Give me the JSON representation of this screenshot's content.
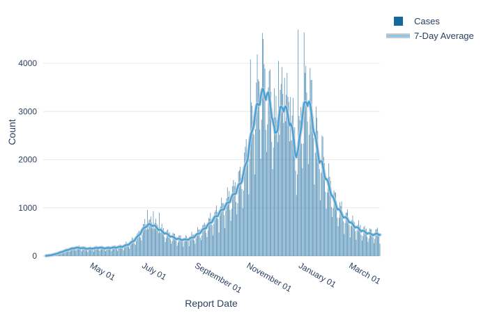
{
  "legend": {
    "items": [
      {
        "label": "Cases",
        "glyph": "square-swatch",
        "color": "#15689e"
      },
      {
        "label": "7-Day Average",
        "glyph": "line-swatch",
        "color": "#8cc6ec",
        "halo": "#c9c9c9"
      }
    ]
  },
  "axes": {
    "y": {
      "title": "Count",
      "ticks": [
        0,
        1000,
        2000,
        3000,
        4000
      ],
      "range": [
        0,
        4910
      ],
      "grid": true
    },
    "x": {
      "title": "Report Date",
      "tick_angle": 30,
      "ticks": [
        {
          "day": 55,
          "label": "May 01"
        },
        {
          "day": 116,
          "label": "July 01"
        },
        {
          "day": 178,
          "label": "September 01"
        },
        {
          "day": 239,
          "label": "November 01"
        },
        {
          "day": 300,
          "label": "January 01"
        },
        {
          "day": 359,
          "label": "March 01"
        }
      ]
    }
  },
  "chart_data": {
    "type": "bar",
    "series": [
      {
        "name": "Cases",
        "type": "bar",
        "color": "#15689e"
      },
      {
        "name": "7-Day Average",
        "type": "line",
        "color": "#45a2d9",
        "halo_color": "#c7ced3"
      }
    ],
    "n_days": 393,
    "grid_color": "#e9e9ec",
    "zeroline_color": "#d7dbde",
    "plot_bg": "#ffffff",
    "avg_anchors": [
      [
        0,
        3
      ],
      [
        7,
        20
      ],
      [
        14,
        55
      ],
      [
        21,
        100
      ],
      [
        28,
        140
      ],
      [
        35,
        170
      ],
      [
        42,
        165
      ],
      [
        49,
        150
      ],
      [
        56,
        158
      ],
      [
        63,
        172
      ],
      [
        70,
        160
      ],
      [
        77,
        170
      ],
      [
        84,
        180
      ],
      [
        91,
        200
      ],
      [
        98,
        250
      ],
      [
        104,
        330
      ],
      [
        109,
        430
      ],
      [
        113,
        530
      ],
      [
        117,
        615
      ],
      [
        121,
        650
      ],
      [
        125,
        640
      ],
      [
        129,
        600
      ],
      [
        133,
        545
      ],
      [
        138,
        490
      ],
      [
        143,
        440
      ],
      [
        148,
        395
      ],
      [
        153,
        360
      ],
      [
        158,
        340
      ],
      [
        163,
        335
      ],
      [
        168,
        350
      ],
      [
        173,
        390
      ],
      [
        178,
        450
      ],
      [
        183,
        520
      ],
      [
        188,
        600
      ],
      [
        193,
        690
      ],
      [
        198,
        790
      ],
      [
        203,
        880
      ],
      [
        208,
        980
      ],
      [
        212,
        1060
      ],
      [
        216,
        1160
      ],
      [
        220,
        1260
      ],
      [
        224,
        1370
      ],
      [
        228,
        1500
      ],
      [
        232,
        1700
      ],
      [
        236,
        2000
      ],
      [
        240,
        2400
      ],
      [
        244,
        2800
      ],
      [
        248,
        3100
      ],
      [
        252,
        3300
      ],
      [
        255,
        3400
      ],
      [
        258,
        3350
      ],
      [
        261,
        3300
      ],
      [
        264,
        3100
      ],
      [
        267,
        2700
      ],
      [
        269,
        2500
      ],
      [
        272,
        2700
      ],
      [
        275,
        3000
      ],
      [
        278,
        3120
      ],
      [
        281,
        3050
      ],
      [
        284,
        2900
      ],
      [
        287,
        2750
      ],
      [
        290,
        2500
      ],
      [
        292,
        2250
      ],
      [
        294,
        2050
      ],
      [
        296,
        2150
      ],
      [
        298,
        2500
      ],
      [
        300,
        2800
      ],
      [
        303,
        3080
      ],
      [
        306,
        3250
      ],
      [
        309,
        3150
      ],
      [
        312,
        2900
      ],
      [
        315,
        2550
      ],
      [
        318,
        2250
      ],
      [
        321,
        2000
      ],
      [
        324,
        1900
      ],
      [
        327,
        1700
      ],
      [
        330,
        1550
      ],
      [
        334,
        1350
      ],
      [
        338,
        1150
      ],
      [
        342,
        1000
      ],
      [
        346,
        900
      ],
      [
        350,
        800
      ],
      [
        354,
        760
      ],
      [
        358,
        680
      ],
      [
        362,
        620
      ],
      [
        366,
        575
      ],
      [
        370,
        530
      ],
      [
        374,
        500
      ],
      [
        378,
        470
      ],
      [
        382,
        450
      ],
      [
        386,
        440
      ],
      [
        389,
        465
      ],
      [
        392,
        440
      ]
    ],
    "weekday_factors": [
      0.6,
      0.85,
      1.15,
      1.25,
      1.2,
      1.1,
      0.85
    ],
    "jitter": [
      1.0,
      0.94,
      1.06,
      0.98,
      1.05,
      0.92,
      1.08,
      0.97,
      1.03,
      0.95,
      1.02
    ],
    "avg_wiggle": [
      0,
      0.018,
      0.03,
      0.02,
      0,
      -0.022,
      -0.032
    ],
    "outliers": {
      "119": 960,
      "126": 930,
      "133": 900,
      "226": 1750,
      "233": 2150,
      "240": 4080,
      "247": 3600,
      "254": 4630,
      "261": 3500,
      "268": 3480,
      "273": 4050,
      "280": 3700,
      "287": 3300,
      "296": 4700,
      "303": 4640,
      "310": 3900,
      "317": 3100,
      "324": 2500
    }
  }
}
